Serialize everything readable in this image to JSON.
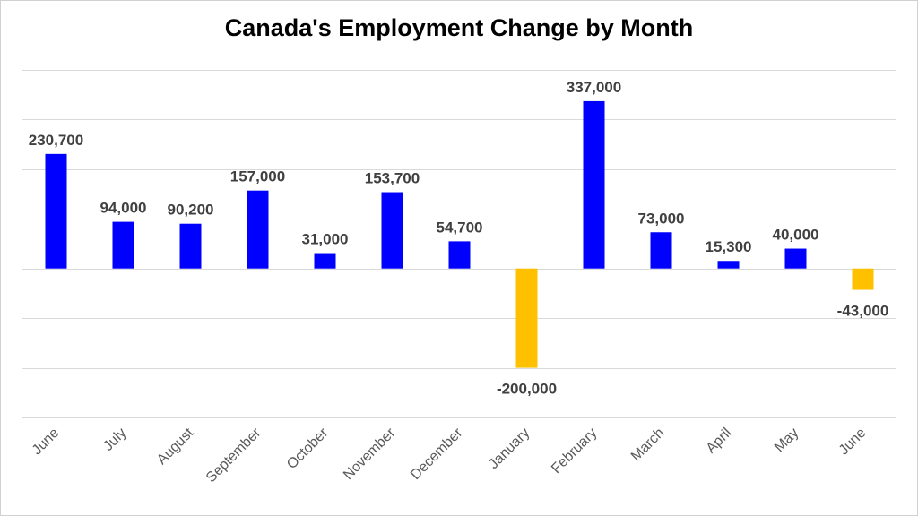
{
  "chart_data": {
    "type": "bar",
    "title": "Canada's Employment Change by Month",
    "xlabel": "",
    "ylabel": "",
    "categories": [
      "June",
      "July",
      "August",
      "September",
      "October",
      "November",
      "December",
      "January",
      "February",
      "March",
      "April",
      "May",
      "June"
    ],
    "values": [
      230700,
      94000,
      90200,
      157000,
      31000,
      153700,
      54700,
      -200000,
      337000,
      73000,
      15300,
      40000,
      -43000
    ],
    "value_labels": [
      "230,700",
      "94,000",
      "90,200",
      "157,000",
      "31,000",
      "153,700",
      "54,700",
      "-200,000",
      "337,000",
      "73,000",
      "15,300",
      "40,000",
      "-43,000"
    ],
    "ylim": [
      -300000,
      400000
    ],
    "gridlines": true,
    "legend": "none",
    "colors": {
      "positive": "#0000ff",
      "negative": "#ffc000"
    }
  }
}
